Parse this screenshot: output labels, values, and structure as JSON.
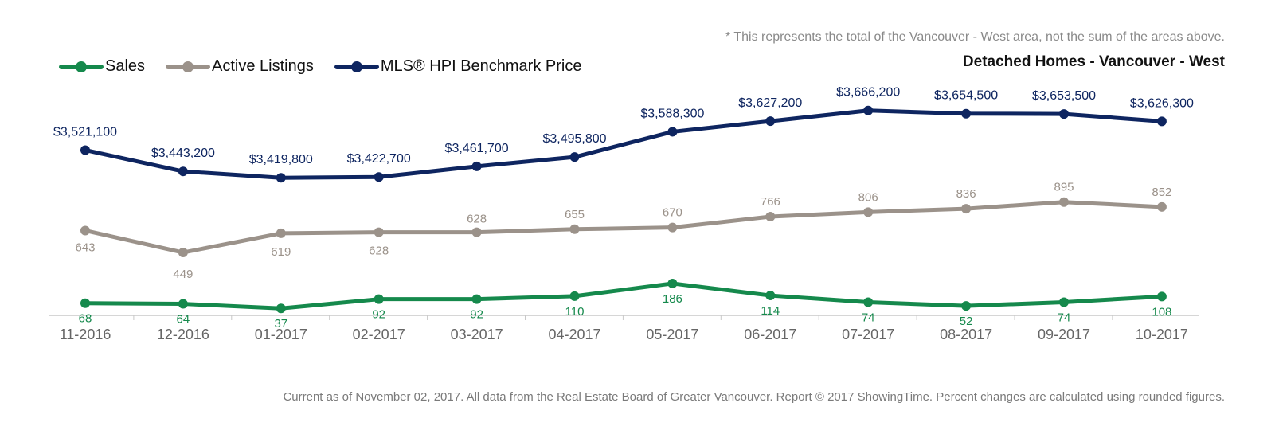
{
  "header": {
    "note": "* This represents the total of the Vancouver - West area, not the sum of the areas above.",
    "title": "Detached Homes - Vancouver - West"
  },
  "footer": {
    "text": "Current as of November 02, 2017. All data from the Real Estate Board of Greater Vancouver. Report © 2017 ShowingTime. Percent changes are calculated using rounded figures."
  },
  "legend": [
    {
      "label": "Sales",
      "color": "#15894c"
    },
    {
      "label": "Active Listings",
      "color": "#9b928a"
    },
    {
      "label": "MLS® HPI Benchmark Price",
      "color": "#0e2560"
    }
  ],
  "chart_data": {
    "type": "line",
    "title": "Detached Homes - Vancouver - West",
    "categories": [
      "11-2016",
      "12-2016",
      "01-2017",
      "02-2017",
      "03-2017",
      "04-2017",
      "05-2017",
      "06-2017",
      "07-2017",
      "08-2017",
      "09-2017",
      "10-2017"
    ],
    "legend_position": "top-left",
    "grid": false,
    "series": [
      {
        "name": "Sales",
        "color": "#15894c",
        "values": [
          68,
          64,
          37,
          92,
          92,
          110,
          186,
          114,
          74,
          52,
          74,
          108
        ],
        "labels": [
          "68",
          "64",
          "37",
          "92",
          "92",
          "110",
          "186",
          "114",
          "74",
          "52",
          "74",
          "108"
        ]
      },
      {
        "name": "Active Listings",
        "color": "#9b928a",
        "values": [
          643,
          449,
          619,
          628,
          628,
          655,
          670,
          766,
          806,
          836,
          895,
          852
        ],
        "labels": [
          "643",
          "449",
          "619",
          "628",
          "628",
          "655",
          "670",
          "766",
          "806",
          "836",
          "895",
          "852"
        ]
      },
      {
        "name": "MLS® HPI Benchmark Price",
        "color": "#0e2560",
        "values": [
          3521100,
          3443200,
          3419800,
          3422700,
          3461700,
          3495800,
          3588300,
          3627200,
          3666200,
          3654500,
          3653500,
          3626300
        ],
        "labels": [
          "$3,521,100",
          "$3,443,200",
          "$3,419,800",
          "$3,422,700",
          "$3,461,700",
          "$3,495,800",
          "$3,588,300",
          "$3,627,200",
          "$3,666,200",
          "$3,654,500",
          "$3,653,500",
          "$3,626,300"
        ]
      }
    ]
  }
}
